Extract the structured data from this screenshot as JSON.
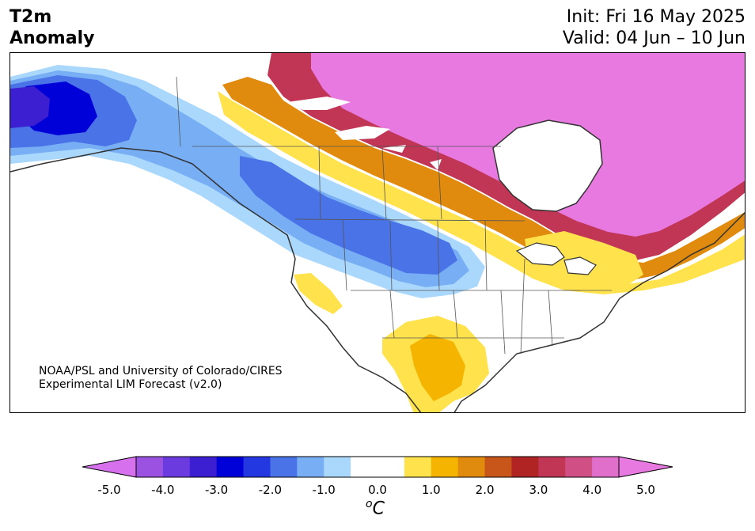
{
  "title": {
    "line1": "T2m",
    "line2": "Anomaly"
  },
  "forecast": {
    "init": "Init: Fri 16 May 2025",
    "valid": "Valid: 04 Jun – 10 Jun"
  },
  "credit": {
    "line1": "NOAA/PSL and University of Colorado/CIRES",
    "line2": "Experimental LIM Forecast (v2.0)"
  },
  "colorbar": {
    "tick_labels": [
      "-5.0",
      "-4.0",
      "-3.0",
      "-2.0",
      "-1.0",
      "0.0",
      "1.0",
      "2.0",
      "3.0",
      "4.0",
      "5.0"
    ],
    "units_base": "C",
    "units_sup": "o",
    "colors": [
      "#9c52e0",
      "#6b3be0",
      "#3c1fd0",
      "#0000d8",
      "#2338e0",
      "#4a73e8",
      "#77aef4",
      "#aad8fc",
      "#ffffff",
      "#ffffff",
      "#ffe24c",
      "#f4b400",
      "#e08a0e",
      "#c8561a",
      "#b02424",
      "#c13555",
      "#d04f85",
      "#e06fcb"
    ],
    "extend_low_color": "#d670ec",
    "extend_high_color": "#e879e0"
  }
}
